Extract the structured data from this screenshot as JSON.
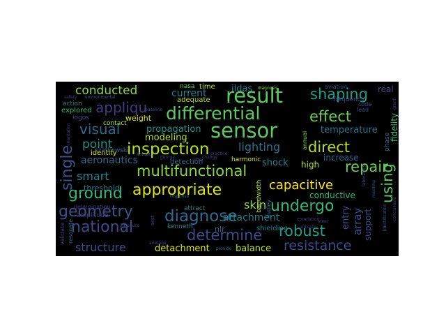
{
  "words": [
    {
      "text": "sensor",
      "color": "#5ec962"
    },
    {
      "text": "result",
      "color": "#5ec962"
    },
    {
      "text": "appropriate",
      "color": "#dde318"
    },
    {
      "text": "multifunctional",
      "color": "#8bd646"
    },
    {
      "text": "differential",
      "color": "#5ec962"
    },
    {
      "text": "inspection",
      "color": "#b5de2b"
    },
    {
      "text": "diagnose",
      "color": "#31688e"
    },
    {
      "text": "geometry",
      "color": "#3b528b"
    },
    {
      "text": "national",
      "color": "#3e4a89"
    },
    {
      "text": "resistance",
      "color": "#3e4a89"
    },
    {
      "text": "determine",
      "color": "#3e4a89"
    },
    {
      "text": "undergo",
      "color": "#35b779"
    },
    {
      "text": "robust",
      "color": "#1f9e89"
    },
    {
      "text": "repair",
      "color": "#6ece58"
    },
    {
      "text": "shaping",
      "color": "#1f9e89"
    },
    {
      "text": "effect",
      "color": "#6ece58"
    },
    {
      "text": "direct",
      "color": "#b5de2b"
    },
    {
      "text": "appliqu",
      "color": "#443a83"
    },
    {
      "text": "visual",
      "color": "#31688e"
    },
    {
      "text": "capacitive",
      "color": "#fde725"
    },
    {
      "text": "ground",
      "color": "#35b779"
    },
    {
      "text": "single",
      "color": "#3b528b"
    },
    {
      "text": "using",
      "color": "#5ec962"
    },
    {
      "text": "conducted",
      "color": "#8bd646"
    },
    {
      "text": "structure",
      "color": "#3e4a89"
    },
    {
      "text": "point",
      "color": "#21918c"
    },
    {
      "text": "lighting",
      "color": "#2c728e"
    },
    {
      "text": "smart",
      "color": "#26828e"
    },
    {
      "text": "skin",
      "color": "#8bd646"
    },
    {
      "text": "attachment",
      "color": "#26828e"
    },
    {
      "text": "aeronautics",
      "color": "#31688e"
    },
    {
      "text": "temperature",
      "color": "#2c728e"
    },
    {
      "text": "propagation",
      "color": "#21918c"
    },
    {
      "text": "modeling",
      "color": "#b5de2b"
    },
    {
      "text": "current",
      "color": "#26828e"
    },
    {
      "text": "detachment",
      "color": "#dde318"
    },
    {
      "text": "balance",
      "color": "#b5de2b"
    },
    {
      "text": "conductive",
      "color": "#35b779"
    },
    {
      "text": "array",
      "color": "#3b528b"
    },
    {
      "text": "entry",
      "color": "#3b528b"
    },
    {
      "text": "support",
      "color": "#3e4a89"
    },
    {
      "text": "ildas",
      "color": "#26828e"
    },
    {
      "text": "shock",
      "color": "#26828e"
    },
    {
      "text": "high",
      "color": "#b5de2b"
    },
    {
      "text": "increase",
      "color": "#31688e"
    },
    {
      "text": "threshold",
      "color": "#2c728e"
    },
    {
      "text": "weight",
      "color": "#dde318"
    },
    {
      "text": "adequate",
      "color": "#b5de2b"
    },
    {
      "text": "identify",
      "color": "#dde318"
    },
    {
      "text": "contact",
      "color": "#b5de2b"
    },
    {
      "text": "explored",
      "color": "#35b779"
    },
    {
      "text": "logos",
      "color": "#3e4a89"
    },
    {
      "text": "action",
      "color": "#26828e"
    },
    {
      "text": "szatkowski",
      "color": "#31688e"
    },
    {
      "text": "delamination",
      "color": "#443a83"
    },
    {
      "text": "amplitude",
      "color": "#443a83"
    },
    {
      "text": "detection",
      "color": "#31688e"
    },
    {
      "text": "harmonic",
      "color": "#dde318"
    },
    {
      "text": "attract",
      "color": "#26828e"
    },
    {
      "text": "kenneth",
      "color": "#26828e"
    },
    {
      "text": "nlr",
      "color": "#31688e"
    },
    {
      "text": "shielding",
      "color": "#26828e"
    },
    {
      "text": "time",
      "color": "#b5de2b"
    },
    {
      "text": "nasa",
      "color": "#6ece58"
    },
    {
      "text": "fidelity",
      "color": "#35b779"
    },
    {
      "text": "real",
      "color": "#3e4a89"
    },
    {
      "text": "code",
      "color": "#3e4a89"
    },
    {
      "text": "lead",
      "color": "#3e4a89"
    },
    {
      "text": "frequency",
      "color": "#3e4a89"
    },
    {
      "text": "validate",
      "color": "#443a83"
    },
    {
      "text": "resonate",
      "color": "#31688e"
    },
    {
      "text": "bandwidth",
      "color": "#b5de2b"
    },
    {
      "text": "dudley",
      "color": "#31688e"
    },
    {
      "text": "annual",
      "color": "#8bd646"
    },
    {
      "text": "indicate",
      "color": "#443a83"
    },
    {
      "text": "steer",
      "color": "#443a83"
    },
    {
      "text": "diagnosis",
      "color": "#8bd646"
    },
    {
      "text": "provide",
      "color": "#31688e"
    },
    {
      "text": "abrupt",
      "color": "#3e4a89"
    },
    {
      "text": "aviation",
      "color": "#3e4a89"
    },
    {
      "text": "environmental",
      "color": "#3e4a89"
    },
    {
      "text": "baseline",
      "color": "#3e4a89"
    },
    {
      "text": "safety",
      "color": "#443a83"
    },
    {
      "text": "average",
      "color": "#3e4a89"
    },
    {
      "text": "response",
      "color": "#31688e"
    },
    {
      "text": "conclusions",
      "color": "#443a83"
    },
    {
      "text": "identification",
      "color": "#3e4a89"
    },
    {
      "text": "meeting",
      "color": "#3e4a89"
    },
    {
      "text": "phase",
      "color": "#31688e"
    },
    {
      "text": "grant",
      "color": "#443a83"
    },
    {
      "text": "laboratory",
      "color": "#3e4a89"
    },
    {
      "text": "orientation",
      "color": "#443a83"
    },
    {
      "text": "correlation",
      "color": "#443a83"
    },
    {
      "text": "practice",
      "color": "#3e4a89"
    },
    {
      "text": "change",
      "color": "#443a83"
    },
    {
      "text": "offer",
      "color": "#3e4a89"
    },
    {
      "text": "george",
      "color": "#443a83"
    },
    {
      "text": "asst",
      "color": "#443a83"
    },
    {
      "text": "introduce",
      "color": "#443a83"
    }
  ]
}
